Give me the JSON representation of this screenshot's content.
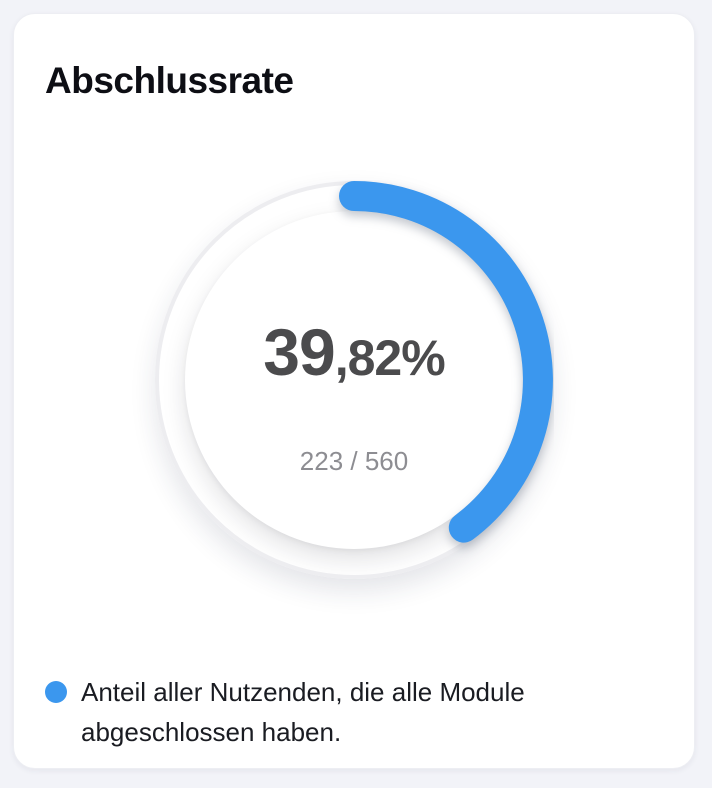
{
  "card": {
    "title": "Abschlussrate"
  },
  "chart_data": {
    "type": "radial-gauge",
    "title": "Abschlussrate",
    "percent_value": 39.82,
    "percent_label": {
      "integer": "39",
      "fraction": ",82%"
    },
    "completed": 223,
    "total": 560,
    "ratio_label": "223 / 560",
    "start_angle_deg": 0,
    "sweep_deg": 143.4,
    "arc_color": "#3b97ee",
    "track_color": "#ededf0",
    "legend": {
      "marker_color": "#3b97ee",
      "text": "Anteil aller Nutzenden, die alle Module abgeschlossen haben."
    }
  },
  "colors": {
    "page_background": "#f2f3f8",
    "card_background": "#ffffff",
    "title_text": "#0d0e14",
    "value_text": "#4b4b4d",
    "ratio_text": "#8d8d92",
    "legend_text": "#1a1c22"
  }
}
